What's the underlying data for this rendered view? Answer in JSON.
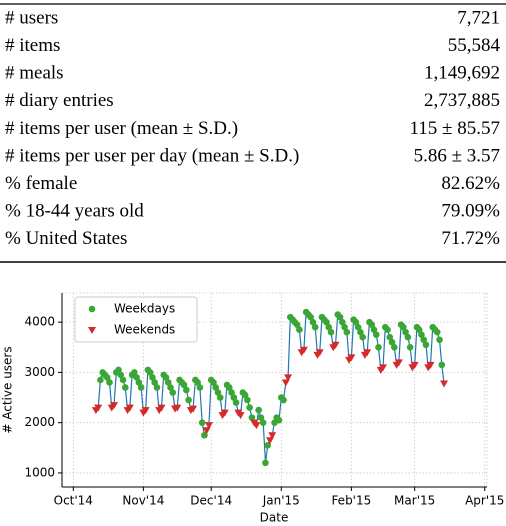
{
  "table": {
    "rows": [
      [
        "# users",
        "7,721"
      ],
      [
        "# items",
        "55,584"
      ],
      [
        "# meals",
        "1,149,692"
      ],
      [
        "# diary entries",
        "2,737,885"
      ],
      [
        "# items per user (mean ± S.D.)",
        "115 ± 85.57"
      ],
      [
        "# items per user per day (mean ± S.D.)",
        "5.86 ± 3.57"
      ],
      [
        "% female",
        "82.62%"
      ],
      [
        "% 18-44 years old",
        "79.09%"
      ],
      [
        "% United States",
        "71.72%"
      ]
    ]
  },
  "chart_data": {
    "type": "line",
    "xlabel": "Date",
    "ylabel": "# Active users",
    "xlim": [
      -5,
      183
    ],
    "ylim": [
      720,
      4580
    ],
    "xticks": [
      {
        "value": 0,
        "label": "Oct'14"
      },
      {
        "value": 31,
        "label": "Nov'14"
      },
      {
        "value": 61,
        "label": "Dec'14"
      },
      {
        "value": 92,
        "label": "Jan'15"
      },
      {
        "value": 123,
        "label": "Feb'15"
      },
      {
        "value": 151,
        "label": "Mar'15"
      },
      {
        "value": 182,
        "label": "Apr'15"
      }
    ],
    "yticks": [
      1000,
      2000,
      3000,
      4000
    ],
    "grid": true,
    "legend": "upper left",
    "line_color": "#1f77b4",
    "x": [
      10,
      11,
      12,
      13,
      14,
      15,
      16,
      17,
      18,
      19,
      20,
      21,
      22,
      23,
      24,
      25,
      26,
      27,
      28,
      29,
      30,
      31,
      32,
      33,
      34,
      35,
      36,
      37,
      38,
      39,
      40,
      41,
      42,
      43,
      44,
      45,
      46,
      47,
      48,
      49,
      50,
      51,
      52,
      53,
      54,
      55,
      56,
      57,
      58,
      59,
      60,
      61,
      62,
      63,
      64,
      65,
      66,
      67,
      68,
      69,
      70,
      71,
      72,
      73,
      74,
      75,
      76,
      77,
      78,
      79,
      80,
      81,
      82,
      83,
      84,
      85,
      86,
      87,
      88,
      89,
      90,
      91,
      92,
      93,
      94,
      95,
      96,
      97,
      98,
      99,
      100,
      101,
      102,
      103,
      104,
      105,
      106,
      107,
      108,
      109,
      110,
      111,
      112,
      113,
      114,
      115,
      116,
      117,
      118,
      119,
      120,
      121,
      122,
      123,
      124,
      125,
      126,
      127,
      128,
      129,
      130,
      131,
      132,
      133,
      134,
      135,
      136,
      137,
      138,
      139,
      140,
      141,
      142,
      143,
      144,
      145,
      146,
      147,
      148,
      149,
      150,
      151,
      152,
      153,
      154,
      155,
      156,
      157,
      158,
      159,
      160,
      161,
      162,
      163,
      164
    ],
    "series": [
      {
        "name": "Weekdays",
        "color": "#3aa635",
        "marker": "circle",
        "values": [
          null,
          null,
          2850,
          3000,
          2950,
          2900,
          2800,
          null,
          null,
          3000,
          3050,
          2950,
          2850,
          2700,
          null,
          null,
          2950,
          3000,
          2900,
          2800,
          2700,
          null,
          null,
          3050,
          3000,
          2900,
          2800,
          2700,
          null,
          null,
          2950,
          2900,
          2800,
          2700,
          2600,
          null,
          null,
          2850,
          2800,
          2750,
          2650,
          2450,
          null,
          null,
          2850,
          2800,
          2700,
          2000,
          1750,
          null,
          null,
          2850,
          2800,
          2700,
          2600,
          2500,
          null,
          null,
          2750,
          2700,
          2600,
          2500,
          2400,
          null,
          null,
          2600,
          2550,
          2450,
          2300,
          2100,
          null,
          null,
          2250,
          2100,
          2000,
          1200,
          1550,
          null,
          null,
          2000,
          2100,
          2050,
          2500,
          2450,
          null,
          null,
          4100,
          4050,
          4000,
          3950,
          3850,
          null,
          null,
          4200,
          4150,
          4100,
          4000,
          3900,
          null,
          null,
          4100,
          4050,
          4000,
          3900,
          3800,
          null,
          null,
          4150,
          4100,
          4000,
          3900,
          3800,
          null,
          null,
          4050,
          4000,
          3900,
          3800,
          3700,
          null,
          null,
          4000,
          3950,
          3850,
          3750,
          3500,
          null,
          null,
          3900,
          3850,
          3700,
          3600,
          3500,
          null,
          null,
          3950,
          3900,
          3800,
          3700,
          3500,
          null,
          null,
          3900,
          3850,
          3750,
          3650,
          3550,
          null,
          null,
          3900,
          3850,
          3800,
          3650,
          3150,
          null
        ]
      },
      {
        "name": "Weekends",
        "color": "#d62a2a",
        "marker": "triangle-down",
        "values": [
          2250,
          2300,
          null,
          null,
          null,
          null,
          null,
          2300,
          2350,
          null,
          null,
          null,
          null,
          null,
          2250,
          2300,
          null,
          null,
          null,
          null,
          null,
          2200,
          2250,
          null,
          null,
          null,
          null,
          null,
          2250,
          2300,
          null,
          null,
          null,
          null,
          null,
          2280,
          2300,
          null,
          null,
          null,
          null,
          null,
          2250,
          2280,
          null,
          null,
          null,
          null,
          null,
          1850,
          1950,
          null,
          null,
          null,
          null,
          null,
          2150,
          2200,
          null,
          null,
          null,
          null,
          null,
          2200,
          2150,
          null,
          null,
          null,
          null,
          null,
          2000,
          1950,
          null,
          null,
          null,
          null,
          null,
          1650,
          1750,
          null,
          null,
          null,
          null,
          null,
          2800,
          2900,
          null,
          null,
          null,
          null,
          null,
          3400,
          3450,
          null,
          null,
          null,
          null,
          null,
          3350,
          3400,
          null,
          null,
          null,
          null,
          null,
          3500,
          3550,
          null,
          null,
          null,
          null,
          null,
          3250,
          3300,
          null,
          null,
          null,
          null,
          null,
          3350,
          3400,
          null,
          null,
          null,
          null,
          null,
          3050,
          3100,
          null,
          null,
          null,
          null,
          null,
          3150,
          3200,
          null,
          null,
          null,
          null,
          null,
          3100,
          3150,
          null,
          null,
          null,
          null,
          null,
          3100,
          3150,
          null,
          null,
          null,
          null,
          null,
          2780
        ]
      }
    ]
  }
}
